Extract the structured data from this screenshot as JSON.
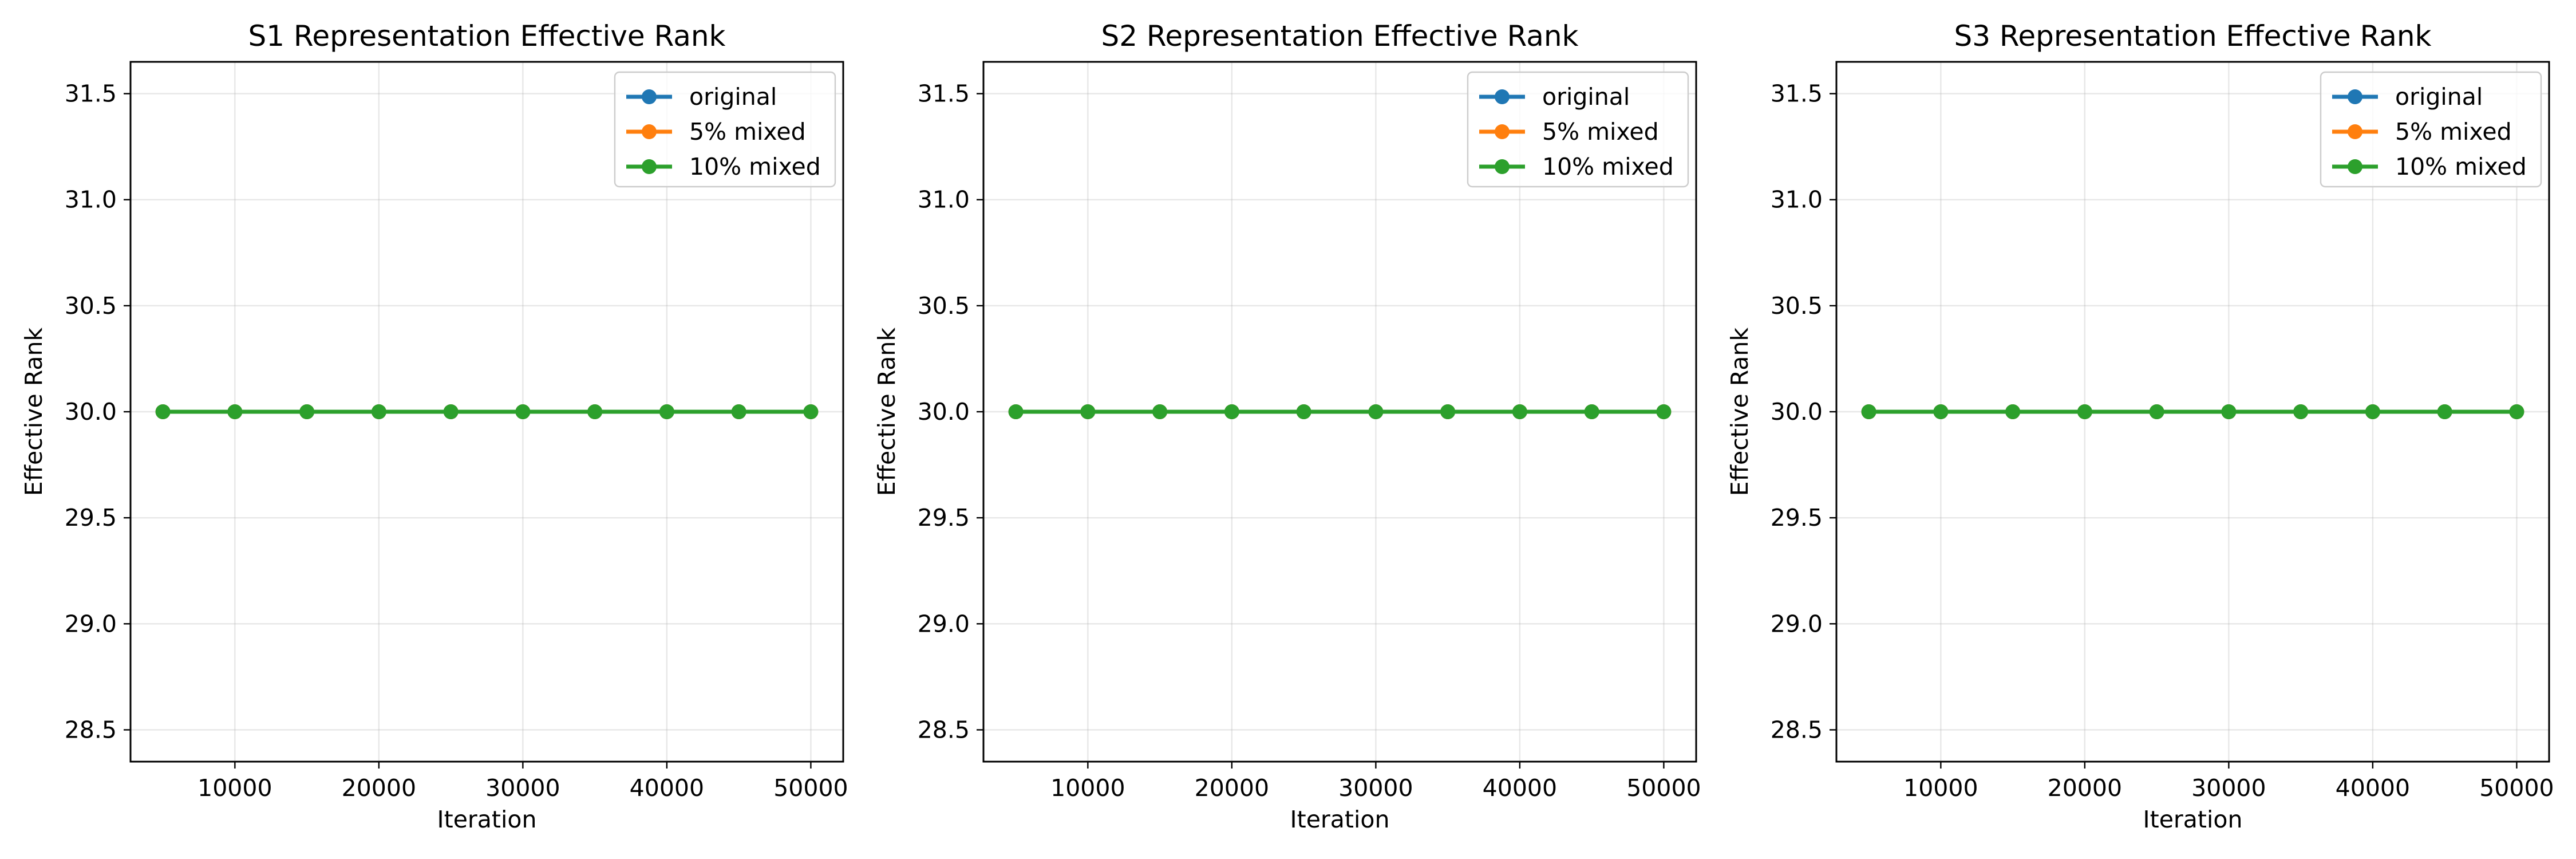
{
  "chart_data": [
    {
      "type": "line",
      "title": "S1 Representation Effective Rank",
      "xlabel": "Iteration",
      "ylabel": "Effective Rank",
      "xlim": [
        2750,
        52250
      ],
      "ylim": [
        28.35,
        31.65
      ],
      "xticks": [
        10000,
        20000,
        30000,
        40000,
        50000
      ],
      "yticks": [
        28.5,
        29.0,
        29.5,
        30.0,
        30.5,
        31.0,
        31.5
      ],
      "xtick_labels": [
        "10000",
        "20000",
        "30000",
        "40000",
        "50000"
      ],
      "ytick_labels": [
        "28.5",
        "29.0",
        "29.5",
        "30.0",
        "30.5",
        "31.0",
        "31.5"
      ],
      "grid": true,
      "legend_position": "top-right",
      "x": [
        5000,
        10000,
        15000,
        20000,
        25000,
        30000,
        35000,
        40000,
        45000,
        50000
      ],
      "series": [
        {
          "name": "original",
          "color": "#1f77b4",
          "values": [
            30,
            30,
            30,
            30,
            30,
            30,
            30,
            30,
            30,
            30
          ]
        },
        {
          "name": "5% mixed",
          "color": "#ff7f0e",
          "values": [
            30,
            30,
            30,
            30,
            30,
            30,
            30,
            30,
            30,
            30
          ]
        },
        {
          "name": "10% mixed",
          "color": "#2ca02c",
          "values": [
            30,
            30,
            30,
            30,
            30,
            30,
            30,
            30,
            30,
            30
          ]
        }
      ]
    },
    {
      "type": "line",
      "title": "S2 Representation Effective Rank",
      "xlabel": "Iteration",
      "ylabel": "Effective Rank",
      "xlim": [
        2750,
        52250
      ],
      "ylim": [
        28.35,
        31.65
      ],
      "xticks": [
        10000,
        20000,
        30000,
        40000,
        50000
      ],
      "yticks": [
        28.5,
        29.0,
        29.5,
        30.0,
        30.5,
        31.0,
        31.5
      ],
      "xtick_labels": [
        "10000",
        "20000",
        "30000",
        "40000",
        "50000"
      ],
      "ytick_labels": [
        "28.5",
        "29.0",
        "29.5",
        "30.0",
        "30.5",
        "31.0",
        "31.5"
      ],
      "grid": true,
      "legend_position": "top-right",
      "x": [
        5000,
        10000,
        15000,
        20000,
        25000,
        30000,
        35000,
        40000,
        45000,
        50000
      ],
      "series": [
        {
          "name": "original",
          "color": "#1f77b4",
          "values": [
            30,
            30,
            30,
            30,
            30,
            30,
            30,
            30,
            30,
            30
          ]
        },
        {
          "name": "5% mixed",
          "color": "#ff7f0e",
          "values": [
            30,
            30,
            30,
            30,
            30,
            30,
            30,
            30,
            30,
            30
          ]
        },
        {
          "name": "10% mixed",
          "color": "#2ca02c",
          "values": [
            30,
            30,
            30,
            30,
            30,
            30,
            30,
            30,
            30,
            30
          ]
        }
      ]
    },
    {
      "type": "line",
      "title": "S3 Representation Effective Rank",
      "xlabel": "Iteration",
      "ylabel": "Effective Rank",
      "xlim": [
        2750,
        52250
      ],
      "ylim": [
        28.35,
        31.65
      ],
      "xticks": [
        10000,
        20000,
        30000,
        40000,
        50000
      ],
      "yticks": [
        28.5,
        29.0,
        29.5,
        30.0,
        30.5,
        31.0,
        31.5
      ],
      "xtick_labels": [
        "10000",
        "20000",
        "30000",
        "40000",
        "50000"
      ],
      "ytick_labels": [
        "28.5",
        "29.0",
        "29.5",
        "30.0",
        "30.5",
        "31.0",
        "31.5"
      ],
      "grid": true,
      "legend_position": "top-right",
      "x": [
        5000,
        10000,
        15000,
        20000,
        25000,
        30000,
        35000,
        40000,
        45000,
        50000
      ],
      "series": [
        {
          "name": "original",
          "color": "#1f77b4",
          "values": [
            30,
            30,
            30,
            30,
            30,
            30,
            30,
            30,
            30,
            30
          ]
        },
        {
          "name": "5% mixed",
          "color": "#ff7f0e",
          "values": [
            30,
            30,
            30,
            30,
            30,
            30,
            30,
            30,
            30,
            30
          ]
        },
        {
          "name": "10% mixed",
          "color": "#2ca02c",
          "values": [
            30,
            30,
            30,
            30,
            30,
            30,
            30,
            30,
            30,
            30
          ]
        }
      ]
    }
  ]
}
